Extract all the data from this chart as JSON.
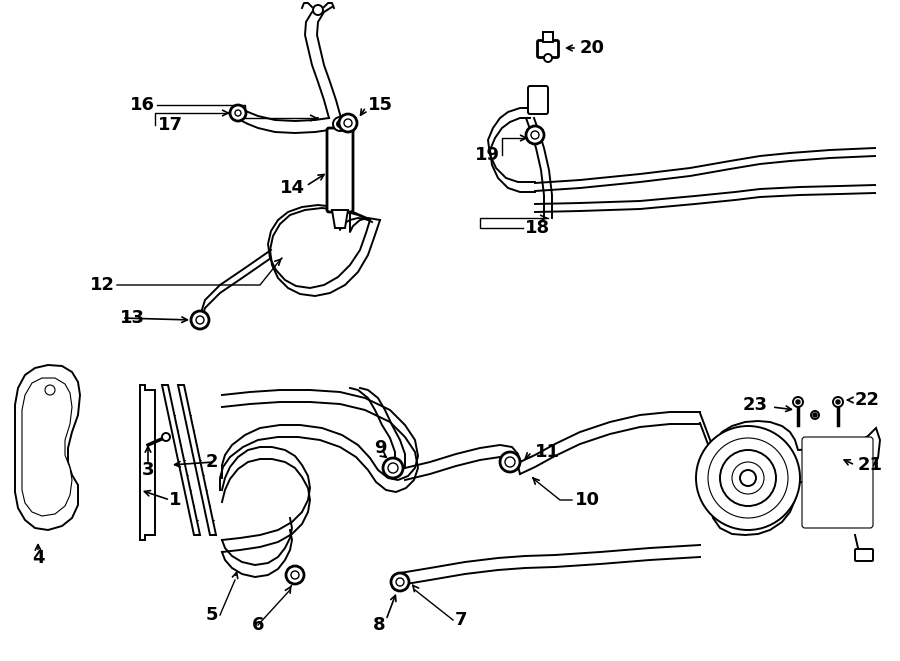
{
  "bg_color": "#ffffff",
  "line_color": "#000000",
  "figsize": [
    9.0,
    6.61
  ],
  "dpi": 100,
  "lw": 1.4,
  "lw_thick": 2.0,
  "fs": 13
}
